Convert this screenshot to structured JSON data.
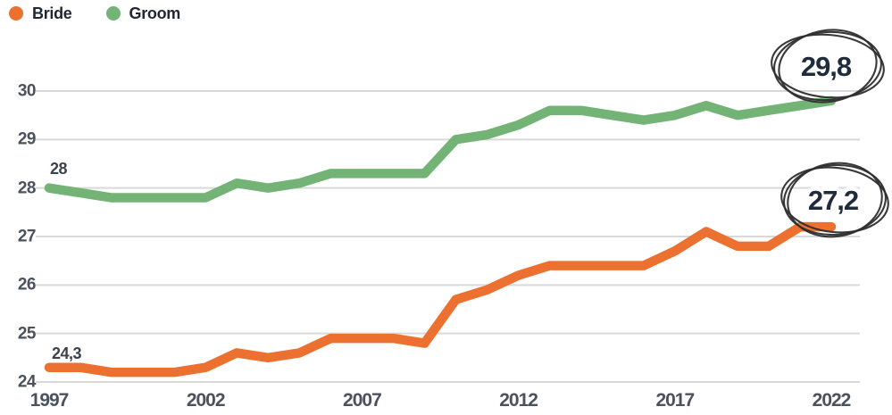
{
  "legend": {
    "items": [
      {
        "label": "Bride",
        "color": "#EC7130"
      },
      {
        "label": "Groom",
        "color": "#73B476"
      }
    ]
  },
  "axes": {
    "y_ticks": [
      "24",
      "25",
      "26",
      "27",
      "28",
      "29",
      "30"
    ],
    "x_ticks": [
      "1997",
      "2002",
      "2007",
      "2012",
      "2017",
      "2022"
    ]
  },
  "annotations": {
    "groom_start": "28",
    "bride_start": "24,3",
    "groom_end": "29,8",
    "bride_end": "27,2"
  },
  "colors": {
    "bride_line": "#EC7130",
    "groom_line": "#73B476",
    "gridline": "#D9D9D9",
    "tick_text": "#4A535D",
    "annotation_text": "#1E2C3C",
    "sketch_circle": "#2E2E2E"
  },
  "chart_data": {
    "type": "line",
    "title": "",
    "xlabel": "",
    "ylabel": "",
    "x": [
      1997,
      1998,
      1999,
      2000,
      2001,
      2002,
      2003,
      2004,
      2005,
      2006,
      2007,
      2008,
      2009,
      2010,
      2011,
      2012,
      2013,
      2014,
      2015,
      2016,
      2017,
      2018,
      2019,
      2020,
      2021,
      2022
    ],
    "series": [
      {
        "name": "Bride",
        "color": "#EC7130",
        "values": [
          24.3,
          24.3,
          24.2,
          24.2,
          24.2,
          24.3,
          24.6,
          24.5,
          24.6,
          24.9,
          24.9,
          24.9,
          24.8,
          25.7,
          25.9,
          26.2,
          26.4,
          26.4,
          26.4,
          26.4,
          26.7,
          27.1,
          26.8,
          26.8,
          27.2,
          27.2
        ]
      },
      {
        "name": "Groom",
        "color": "#73B476",
        "values": [
          28.0,
          27.9,
          27.8,
          27.8,
          27.8,
          27.8,
          28.1,
          28.0,
          28.1,
          28.3,
          28.3,
          28.3,
          28.3,
          29.0,
          29.1,
          29.3,
          29.6,
          29.6,
          29.5,
          29.4,
          29.5,
          29.7,
          29.5,
          29.6,
          29.7,
          29.8
        ]
      }
    ],
    "ylim": [
      24,
      30.5
    ],
    "xlim": [
      1997,
      2022
    ],
    "grid": "horizontal",
    "legend_position": "top-left",
    "decimal_separator": ",",
    "annotated_points": [
      {
        "series": "Groom",
        "x": 1997,
        "label": "28"
      },
      {
        "series": "Bride",
        "x": 1997,
        "label": "24,3"
      },
      {
        "series": "Groom",
        "x": 2022,
        "label": "29,8",
        "style": "hand-drawn-circle"
      },
      {
        "series": "Bride",
        "x": 2022,
        "label": "27,2",
        "style": "hand-drawn-circle"
      }
    ]
  }
}
